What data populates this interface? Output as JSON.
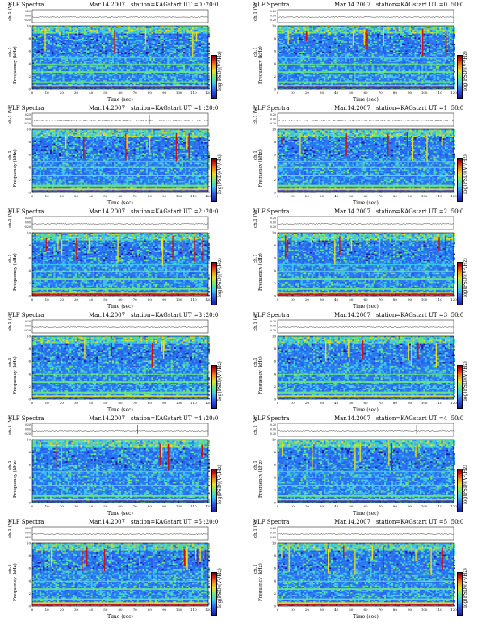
{
  "common": {
    "title_prefix": "VLF Spectra",
    "date": "Mar.14.2007",
    "station": "station=KAG",
    "ch1_ylabel": "ch.1 (V)",
    "freq_ylabel": "Frequency (kHz)",
    "xlabel": "Time (sec)",
    "cbar_label": "log(PSD)(V²/Hz)",
    "ch_label": "ch.1"
  },
  "panels": [
    {
      "start": "start UT =0 :20:0"
    },
    {
      "start": "start UT =0 :50:0"
    },
    {
      "start": "start UT =1 :20:0"
    },
    {
      "start": "start UT =1 :50:0"
    },
    {
      "start": "start UT =2 :20:0"
    },
    {
      "start": "start UT =2 :50:0"
    },
    {
      "start": "start UT =3 :20:0"
    },
    {
      "start": "start UT =3 :50:0"
    },
    {
      "start": "start UT =4 :20:0"
    },
    {
      "start": "start UT =4 :50:0"
    },
    {
      "start": "start UT =5 :20:0"
    },
    {
      "start": "start UT =5 :50:0"
    }
  ],
  "chart_data": {
    "type": "heatmap",
    "title": "VLF Spectra",
    "xlabel": "Time (sec)",
    "ylabel": "Frequency (kHz)",
    "x_ticks": [
      0,
      10,
      20,
      30,
      40,
      50,
      60,
      70,
      80,
      90,
      100,
      110,
      120
    ],
    "y_ticks": [
      0,
      2,
      4,
      6,
      8,
      10
    ],
    "xlim": [
      0,
      120
    ],
    "ylim": [
      0,
      10
    ],
    "ch1_ticks": [
      "0.20",
      "0.00",
      "-0.20"
    ],
    "colorbar_label": "log(PSD)(V²/Hz)",
    "colors": {
      "background": "#2a7cf0",
      "noise_low": "#2a5cf0",
      "band": "#6ee87a",
      "high": "#e8e020",
      "peak": "#d01010"
    }
  }
}
